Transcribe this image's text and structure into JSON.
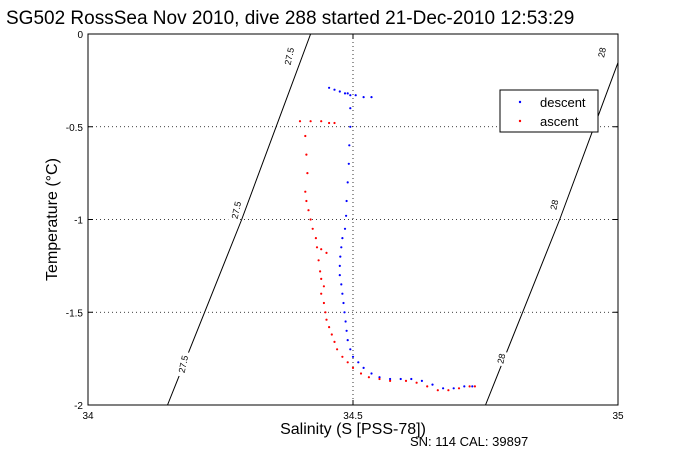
{
  "chart_data": {
    "type": "scatter",
    "title": "SG502 RossSea Nov 2010, dive 288 started 21-Dec-2010 12:53:29",
    "xlabel": "Salinity (S [PSS-78])",
    "ylabel": "Temperature (°C)",
    "xlim": [
      34,
      35
    ],
    "ylim": [
      -2,
      0
    ],
    "xticks": [
      "34",
      "34.5",
      "35"
    ],
    "yticks": [
      "0",
      "-0.5",
      "-1",
      "-1.5",
      "-2"
    ],
    "grid": true,
    "legend_position": "top-right",
    "footnote": "SN: 114  CAL: 39897",
    "density_contours": [
      {
        "label": "27.5",
        "points": [
          [
            34.15,
            -2
          ],
          [
            34.22,
            -1.5
          ],
          [
            34.29,
            -1.0
          ],
          [
            34.355,
            -0.5
          ],
          [
            34.42,
            0
          ]
        ]
      },
      {
        "label": "28",
        "points": [
          [
            34.75,
            -2
          ],
          [
            34.82,
            -1.5
          ],
          [
            34.89,
            -1.0
          ],
          [
            34.955,
            -0.5
          ],
          [
            35.02,
            0
          ]
        ]
      }
    ],
    "contour_labels": [
      {
        "text": "27.5",
        "x": 34.38,
        "y": -0.12
      },
      {
        "text": "27.5",
        "x": 34.28,
        "y": -0.95
      },
      {
        "text": "27.5",
        "x": 34.18,
        "y": -1.78
      },
      {
        "text": "28",
        "x": 34.97,
        "y": -0.1
      },
      {
        "text": "28",
        "x": 34.88,
        "y": -0.92
      },
      {
        "text": "28",
        "x": 34.78,
        "y": -1.75
      }
    ],
    "series": [
      {
        "name": "descent",
        "color": "#0000ff",
        "points": [
          [
            34.455,
            -0.29
          ],
          [
            34.465,
            -0.3
          ],
          [
            34.475,
            -0.31
          ],
          [
            34.485,
            -0.32
          ],
          [
            34.495,
            -0.33
          ],
          [
            34.505,
            -0.33
          ],
          [
            34.52,
            -0.34
          ],
          [
            34.535,
            -0.34
          ],
          [
            34.49,
            -0.32
          ],
          [
            34.495,
            -0.4
          ],
          [
            34.495,
            -0.5
          ],
          [
            34.493,
            -0.6
          ],
          [
            34.492,
            -0.7
          ],
          [
            34.49,
            -0.8
          ],
          [
            34.488,
            -0.9
          ],
          [
            34.487,
            -0.98
          ],
          [
            34.485,
            -1.05
          ],
          [
            34.48,
            -1.1
          ],
          [
            34.478,
            -1.15
          ],
          [
            34.476,
            -1.2
          ],
          [
            34.475,
            -1.25
          ],
          [
            34.475,
            -1.3
          ],
          [
            34.478,
            -1.35
          ],
          [
            34.48,
            -1.4
          ],
          [
            34.482,
            -1.45
          ],
          [
            34.484,
            -1.5
          ],
          [
            34.486,
            -1.55
          ],
          [
            34.488,
            -1.6
          ],
          [
            34.49,
            -1.65
          ],
          [
            34.495,
            -1.7
          ],
          [
            34.5,
            -1.74
          ],
          [
            34.51,
            -1.77
          ],
          [
            34.52,
            -1.8
          ],
          [
            34.535,
            -1.83
          ],
          [
            34.55,
            -1.85
          ],
          [
            34.57,
            -1.86
          ],
          [
            34.59,
            -1.86
          ],
          [
            34.61,
            -1.86
          ],
          [
            34.63,
            -1.87
          ],
          [
            34.65,
            -1.89
          ],
          [
            34.67,
            -1.91
          ],
          [
            34.69,
            -1.91
          ],
          [
            34.71,
            -1.9
          ],
          [
            34.725,
            -1.9
          ]
        ]
      },
      {
        "name": "ascent",
        "color": "#ff0000",
        "points": [
          [
            34.4,
            -0.47
          ],
          [
            34.42,
            -0.47
          ],
          [
            34.44,
            -0.47
          ],
          [
            34.455,
            -0.48
          ],
          [
            34.465,
            -0.48
          ],
          [
            34.41,
            -0.55
          ],
          [
            34.412,
            -0.65
          ],
          [
            34.414,
            -0.75
          ],
          [
            34.41,
            -0.85
          ],
          [
            34.412,
            -0.9
          ],
          [
            34.416,
            -0.95
          ],
          [
            34.42,
            -1.0
          ],
          [
            34.424,
            -1.05
          ],
          [
            34.43,
            -1.1
          ],
          [
            34.432,
            -1.15
          ],
          [
            34.44,
            -1.16
          ],
          [
            34.45,
            -1.18
          ],
          [
            34.435,
            -1.22
          ],
          [
            34.438,
            -1.28
          ],
          [
            34.44,
            -1.32
          ],
          [
            34.445,
            -1.36
          ],
          [
            34.44,
            -1.4
          ],
          [
            34.445,
            -1.45
          ],
          [
            34.448,
            -1.5
          ],
          [
            34.45,
            -1.54
          ],
          [
            34.455,
            -1.58
          ],
          [
            34.46,
            -1.62
          ],
          [
            34.465,
            -1.66
          ],
          [
            34.47,
            -1.7
          ],
          [
            34.48,
            -1.74
          ],
          [
            34.49,
            -1.77
          ],
          [
            34.5,
            -1.8
          ],
          [
            34.515,
            -1.83
          ],
          [
            34.53,
            -1.85
          ],
          [
            34.55,
            -1.86
          ],
          [
            34.57,
            -1.87
          ],
          [
            34.6,
            -1.87
          ],
          [
            34.62,
            -1.88
          ],
          [
            34.64,
            -1.9
          ],
          [
            34.66,
            -1.92
          ],
          [
            34.68,
            -1.92
          ],
          [
            34.7,
            -1.91
          ],
          [
            34.72,
            -1.9
          ],
          [
            34.73,
            -1.9
          ]
        ]
      }
    ]
  }
}
